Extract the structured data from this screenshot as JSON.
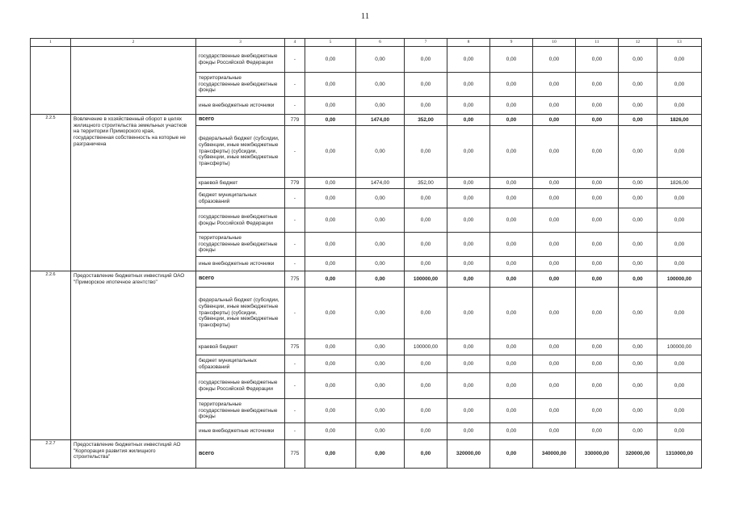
{
  "page_number": "11",
  "header": [
    "1",
    "2",
    "3",
    "4",
    "5",
    "6",
    "7",
    "8",
    "9",
    "10",
    "11",
    "12",
    "13"
  ],
  "groups": [
    {
      "num": "",
      "name": "",
      "rows": [
        {
          "source": "государственные внебюджетные фонды Российской Федерации",
          "code": "-",
          "values": [
            "0,00",
            "0,00",
            "0,00",
            "0,00",
            "0,00",
            "0,00",
            "0,00",
            "0,00",
            "0,00"
          ]
        },
        {
          "source": "территориальные государственные внебюджетные фонды",
          "code": "-",
          "values": [
            "0,00",
            "0,00",
            "0,00",
            "0,00",
            "0,00",
            "0,00",
            "0,00",
            "0,00",
            "0,00"
          ]
        },
        {
          "source": "иные внебюджетные источники",
          "code": "-",
          "values": [
            "0,00",
            "0,00",
            "0,00",
            "0,00",
            "0,00",
            "0,00",
            "0,00",
            "0,00",
            "0,00"
          ]
        }
      ]
    },
    {
      "num": "2.2.5",
      "name": "Вовлечение в хозяйственный оборот в целях жилищного строительства земельных участков на территории Приморского края, государственная собственность на которые не разграничена",
      "rows": [
        {
          "source": "всего",
          "total": true,
          "code": "779",
          "values": [
            "0,00",
            "1474,00",
            "352,00",
            "0,00",
            "0,00",
            "0,00",
            "0,00",
            "0,00",
            "1826,00"
          ]
        },
        {
          "source": "федеральный бюджет (субсидии, субвенции, иные межбюджетные трансферты) (субсидии, субвенции, иные межбюджетные трансферты)",
          "code": "-",
          "values": [
            "0,00",
            "0,00",
            "0,00",
            "0,00",
            "0,00",
            "0,00",
            "0,00",
            "0,00",
            "0,00"
          ]
        },
        {
          "source": "краевой бюджет",
          "code": "779",
          "values": [
            "0,00",
            "1474,00",
            "352,00",
            "0,00",
            "0,00",
            "0,00",
            "0,00",
            "0,00",
            "1826,00"
          ]
        },
        {
          "source": "бюджет муниципальных образований",
          "code": "-",
          "values": [
            "0,00",
            "0,00",
            "0,00",
            "0,00",
            "0,00",
            "0,00",
            "0,00",
            "0,00",
            "0,00"
          ]
        },
        {
          "source": "государственные внебюджетные фонды Российской Федерации",
          "code": "-",
          "values": [
            "0,00",
            "0,00",
            "0,00",
            "0,00",
            "0,00",
            "0,00",
            "0,00",
            "0,00",
            "0,00"
          ]
        },
        {
          "source": "территориальные государственные внебюджетные фонды",
          "code": "-",
          "values": [
            "0,00",
            "0,00",
            "0,00",
            "0,00",
            "0,00",
            "0,00",
            "0,00",
            "0,00",
            "0,00"
          ]
        },
        {
          "source": "иные внебюджетные источники",
          "code": "-",
          "values": [
            "0,00",
            "0,00",
            "0,00",
            "0,00",
            "0,00",
            "0,00",
            "0,00",
            "0,00",
            "0,00"
          ]
        }
      ]
    },
    {
      "num": "2.2.6",
      "name": "Предоставление бюджетных инвестиций ОАО \"Приморское ипотечное агентство\"",
      "rows": [
        {
          "source": "всего",
          "total": true,
          "code": "775",
          "values": [
            "0,00",
            "0,00",
            "100000,00",
            "0,00",
            "0,00",
            "0,00",
            "0,00",
            "0,00",
            "100000,00"
          ]
        },
        {
          "source": "федеральный бюджет (субсидии, субвенции, иные межбюджетные трансферты) (субсидии, субвенции, иные межбюджетные трансферты)",
          "code": "-",
          "values": [
            "0,00",
            "0,00",
            "0,00",
            "0,00",
            "0,00",
            "0,00",
            "0,00",
            "0,00",
            "0,00"
          ]
        },
        {
          "source": "краевой бюджет",
          "code": "775",
          "values": [
            "0,00",
            "0,00",
            "100000,00",
            "0,00",
            "0,00",
            "0,00",
            "0,00",
            "0,00",
            "100000,00"
          ]
        },
        {
          "source": "бюджет муниципальных образований",
          "code": "-",
          "values": [
            "0,00",
            "0,00",
            "0,00",
            "0,00",
            "0,00",
            "0,00",
            "0,00",
            "0,00",
            "0,00"
          ]
        },
        {
          "source": "государственные внебюджетные фонды Российской Федерации",
          "code": "-",
          "values": [
            "0,00",
            "0,00",
            "0,00",
            "0,00",
            "0,00",
            "0,00",
            "0,00",
            "0,00",
            "0,00"
          ]
        },
        {
          "source": "территориальные государственные внебюджетные фонды",
          "code": "-",
          "values": [
            "0,00",
            "0,00",
            "0,00",
            "0,00",
            "0,00",
            "0,00",
            "0,00",
            "0,00",
            "0,00"
          ]
        },
        {
          "source": "иные внебюджетные источники",
          "code": "-",
          "values": [
            "0,00",
            "0,00",
            "0,00",
            "0,00",
            "0,00",
            "0,00",
            "0,00",
            "0,00",
            "0,00"
          ]
        }
      ]
    },
    {
      "num": "2.2.7",
      "name": "Предоставление бюджетных инвестиций АО \"Корпорация развития жилищного строительства\"",
      "rows": [
        {
          "source": "всего",
          "total": true,
          "code": "775",
          "values": [
            "0,00",
            "0,00",
            "0,00",
            "320000,00",
            "0,00",
            "340000,00",
            "330000,00",
            "320000,00",
            "1310000,00"
          ]
        }
      ]
    }
  ]
}
